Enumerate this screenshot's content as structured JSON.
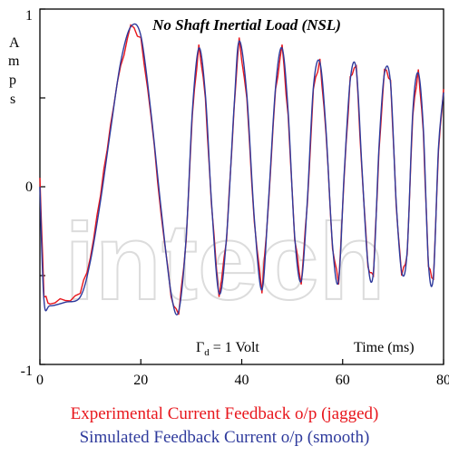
{
  "chart_data": {
    "type": "line",
    "title": "No Shaft Inertial Load (NSL)",
    "ylabel_chars": [
      "A",
      "m",
      "p",
      "s"
    ],
    "xlim": [
      0,
      80
    ],
    "ylim": [
      -1,
      1
    ],
    "x_ticks": [
      0,
      20,
      40,
      60,
      80
    ],
    "x_tick_labels": [
      "0",
      "20",
      "40",
      "60",
      "80"
    ],
    "y_tick_labels": [
      {
        "value": 1,
        "label": "1"
      },
      {
        "value": 0,
        "label": "0"
      },
      {
        "value": -1,
        "label": "-1"
      }
    ],
    "y_minor_ticks": [
      0.5,
      -0.5
    ],
    "annotation_gamma": "Γ",
    "annotation_sub": "d",
    "annotation_value": " = 1 Volt",
    "annotation_time": "Time (ms)",
    "captions": {
      "experimental": "Experimental Current Feedback o/p (jagged)",
      "simulated": "Simulated Feedback Current o/p (smooth)"
    },
    "watermark": "intech",
    "series": [
      {
        "key": "experimental",
        "color": "#e8161c",
        "x": [
          0,
          0.8,
          2,
          5,
          8,
          10,
          12,
          14,
          16,
          18,
          20,
          22,
          24,
          26,
          27.5,
          29,
          30.2,
          31.5,
          32.8,
          34,
          35.5,
          37,
          38.5,
          39.5,
          41,
          42.5,
          44,
          45.3,
          46.7,
          48,
          49.2,
          50.5,
          51.8,
          53,
          54.2,
          55.5,
          56.7,
          58,
          59.2,
          60.3,
          61.5,
          62.7,
          63.8,
          65,
          66.1,
          67.2,
          68.3,
          69.5,
          70.6,
          71.7,
          72.8,
          73.9,
          75,
          76,
          77,
          78,
          79,
          80
        ],
        "y": [
          0.05,
          -0.62,
          -0.66,
          -0.64,
          -0.6,
          -0.4,
          -0.05,
          0.35,
          0.68,
          0.91,
          0.84,
          0.4,
          -0.15,
          -0.62,
          -0.72,
          -0.3,
          0.4,
          0.8,
          0.5,
          -0.1,
          -0.62,
          -0.3,
          0.45,
          0.84,
          0.5,
          -0.2,
          -0.6,
          -0.1,
          0.55,
          0.8,
          0.4,
          -0.3,
          -0.55,
          -0.1,
          0.55,
          0.72,
          0.3,
          -0.35,
          -0.55,
          0.05,
          0.62,
          0.68,
          0.1,
          -0.45,
          -0.5,
          0.2,
          0.66,
          0.6,
          -0.1,
          -0.5,
          -0.38,
          0.4,
          0.66,
          0.3,
          -0.45,
          -0.52,
          0.2,
          0.55
        ]
      },
      {
        "key": "simulated",
        "color": "#2e3a9c",
        "x": [
          0,
          0.8,
          2,
          5,
          8,
          10,
          12,
          14,
          16,
          18,
          20,
          22,
          24,
          26,
          27.5,
          29,
          30.2,
          31.5,
          32.8,
          34,
          35.5,
          37,
          38.5,
          39.5,
          41,
          42.5,
          44,
          45.3,
          46.7,
          48,
          49.2,
          50.5,
          51.8,
          53,
          54.2,
          55.5,
          56.7,
          58,
          59.2,
          60.3,
          61.5,
          62.7,
          63.8,
          65,
          66.1,
          67.2,
          68.3,
          69.5,
          70.6,
          71.7,
          72.8,
          73.9,
          75,
          76,
          77,
          78,
          79,
          80
        ],
        "y": [
          0.0,
          -0.64,
          -0.67,
          -0.65,
          -0.62,
          -0.42,
          -0.08,
          0.32,
          0.7,
          0.9,
          0.85,
          0.42,
          -0.12,
          -0.6,
          -0.7,
          -0.28,
          0.42,
          0.78,
          0.52,
          -0.08,
          -0.6,
          -0.28,
          0.46,
          0.82,
          0.52,
          -0.18,
          -0.58,
          -0.08,
          0.56,
          0.78,
          0.42,
          -0.28,
          -0.53,
          -0.08,
          0.56,
          0.7,
          0.32,
          -0.33,
          -0.53,
          0.07,
          0.6,
          0.66,
          0.12,
          -0.43,
          -0.48,
          0.22,
          0.64,
          0.58,
          -0.08,
          -0.48,
          -0.36,
          0.42,
          0.64,
          0.32,
          -0.43,
          -0.5,
          0.22,
          0.53
        ]
      }
    ]
  }
}
